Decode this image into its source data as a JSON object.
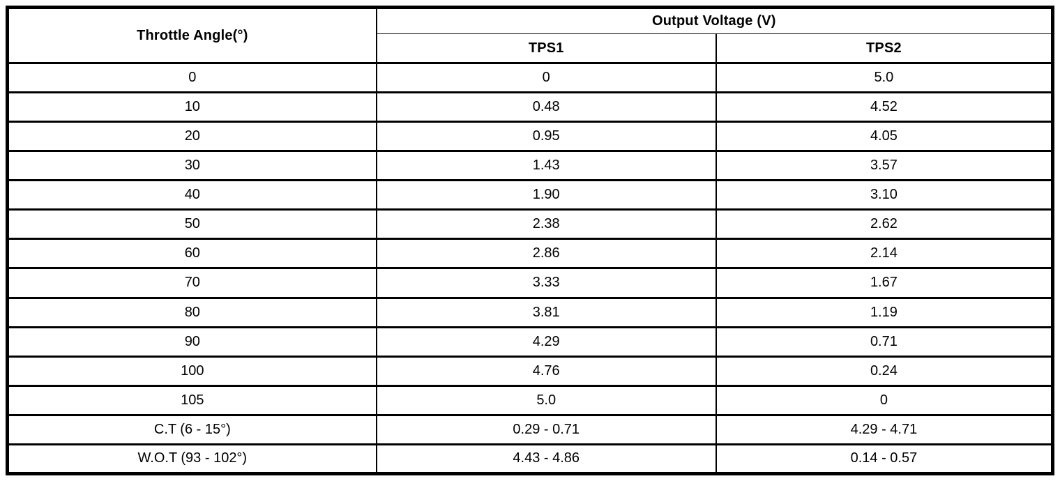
{
  "table": {
    "angle_header": "Throttle Angle(°)",
    "group_header": "Output Voltage (V)",
    "sub_headers": [
      "TPS1",
      "TPS2"
    ],
    "rows": [
      {
        "angle": "0",
        "tps1": "0",
        "tps2": "5.0"
      },
      {
        "angle": "10",
        "tps1": "0.48",
        "tps2": "4.52"
      },
      {
        "angle": "20",
        "tps1": "0.95",
        "tps2": "4.05"
      },
      {
        "angle": "30",
        "tps1": "1.43",
        "tps2": "3.57"
      },
      {
        "angle": "40",
        "tps1": "1.90",
        "tps2": "3.10"
      },
      {
        "angle": "50",
        "tps1": "2.38",
        "tps2": "2.62"
      },
      {
        "angle": "60",
        "tps1": "2.86",
        "tps2": "2.14"
      },
      {
        "angle": "70",
        "tps1": "3.33",
        "tps2": "1.67"
      },
      {
        "angle": "80",
        "tps1": "3.81",
        "tps2": "1.19"
      },
      {
        "angle": "90",
        "tps1": "4.29",
        "tps2": "0.71"
      },
      {
        "angle": "100",
        "tps1": "4.76",
        "tps2": "0.24"
      },
      {
        "angle": "105",
        "tps1": "5.0",
        "tps2": "0"
      },
      {
        "angle": "C.T (6 - 15°)",
        "tps1": "0.29 - 0.71",
        "tps2": "4.29 - 4.71"
      },
      {
        "angle": "W.O.T (93 - 102°)",
        "tps1": "4.43 - 4.86",
        "tps2": "0.14 - 0.57"
      }
    ],
    "colors": {
      "border": "#000000",
      "background": "#ffffff",
      "text": "#000000"
    }
  },
  "chart_data": {
    "type": "table",
    "columns": [
      "Throttle Angle(°)",
      "TPS1",
      "TPS2"
    ],
    "column_group": {
      "label": "Output Voltage (V)",
      "spans": [
        "TPS1",
        "TPS2"
      ]
    },
    "rows": [
      [
        "0",
        "0",
        "5.0"
      ],
      [
        "10",
        "0.48",
        "4.52"
      ],
      [
        "20",
        "0.95",
        "4.05"
      ],
      [
        "30",
        "1.43",
        "3.57"
      ],
      [
        "40",
        "1.90",
        "3.10"
      ],
      [
        "50",
        "2.38",
        "2.62"
      ],
      [
        "60",
        "2.86",
        "2.14"
      ],
      [
        "70",
        "3.33",
        "1.67"
      ],
      [
        "80",
        "3.81",
        "1.19"
      ],
      [
        "90",
        "4.29",
        "0.71"
      ],
      [
        "100",
        "4.76",
        "0.24"
      ],
      [
        "105",
        "5.0",
        "0"
      ],
      [
        "C.T (6 - 15°)",
        "0.29 - 0.71",
        "4.29 - 4.71"
      ],
      [
        "W.O.T (93 - 102°)",
        "4.43 - 4.86",
        "0.14 - 0.57"
      ]
    ]
  }
}
